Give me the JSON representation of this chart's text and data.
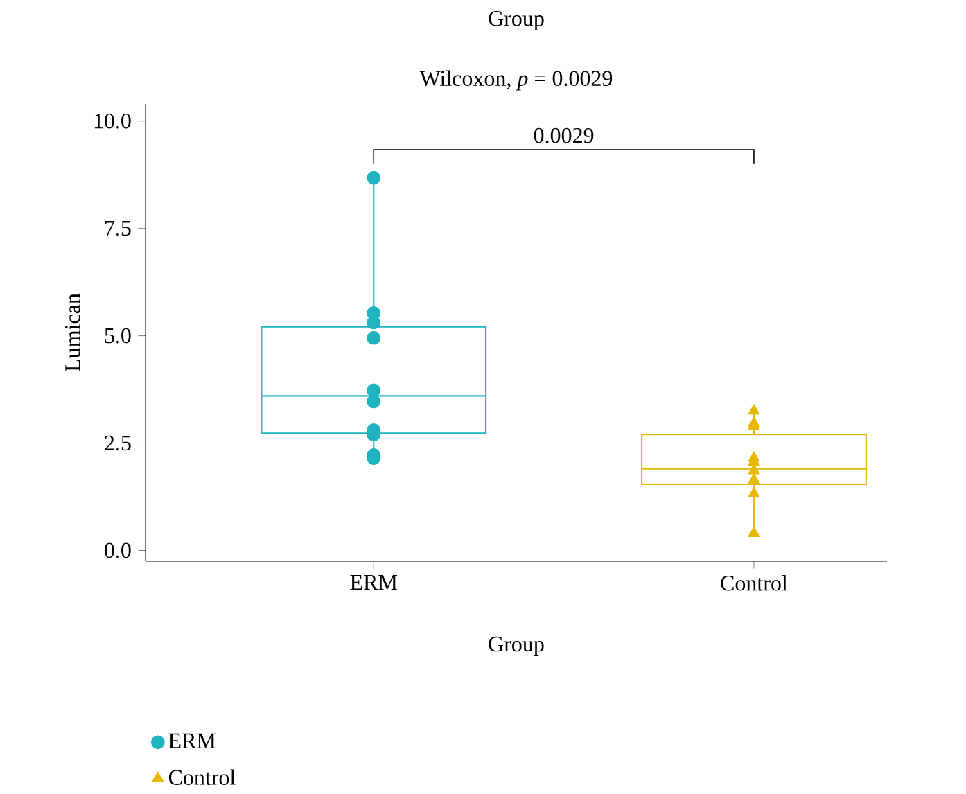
{
  "chart_data": {
    "type": "box",
    "title": "Group",
    "subtitle": "Wilcoxon, *p* = 0.0029",
    "xlabel": "Group",
    "ylabel": "Lumican",
    "categories": [
      "ERM",
      "Control"
    ],
    "colors": [
      "#1fb3c0",
      "#e6b800"
    ],
    "boxes": [
      {
        "low": 2.15,
        "q1": 2.73,
        "median": 3.6,
        "q3": 5.21,
        "high": 8.68
      },
      {
        "low": 0.4,
        "q1": 1.54,
        "median": 1.9,
        "q3": 2.7,
        "high": 3.25
      }
    ],
    "series": [
      {
        "name": "ERM",
        "type": "scatter",
        "marker": "circle",
        "color": "#1fb3c0",
        "x": [
          "ERM",
          "ERM",
          "ERM",
          "ERM",
          "ERM",
          "ERM",
          "ERM",
          "ERM",
          "ERM",
          "ERM"
        ],
        "values": [
          8.68,
          5.53,
          5.31,
          4.95,
          3.73,
          3.47,
          2.8,
          2.7,
          2.22,
          2.15
        ]
      },
      {
        "name": "Control",
        "type": "scatter",
        "marker": "triangle",
        "color": "#e6b800",
        "x": [
          "Control",
          "Control",
          "Control",
          "Control",
          "Control",
          "Control",
          "Control",
          "Control",
          "Control"
        ],
        "values": [
          3.25,
          2.96,
          2.89,
          2.15,
          2.06,
          1.86,
          1.64,
          1.32,
          0.4
        ]
      }
    ],
    "annotations": [
      "0.0029"
    ],
    "ylim": [
      -0.25,
      10.4
    ],
    "yticks": [
      {
        "value": 0,
        "label": "0.0"
      },
      {
        "value": 2.5,
        "label": "2.5"
      },
      {
        "value": 5,
        "label": "5.0"
      },
      {
        "value": 7.5,
        "label": "7.5"
      },
      {
        "value": 10,
        "label": "10.0"
      }
    ],
    "legend": "bottom left"
  }
}
